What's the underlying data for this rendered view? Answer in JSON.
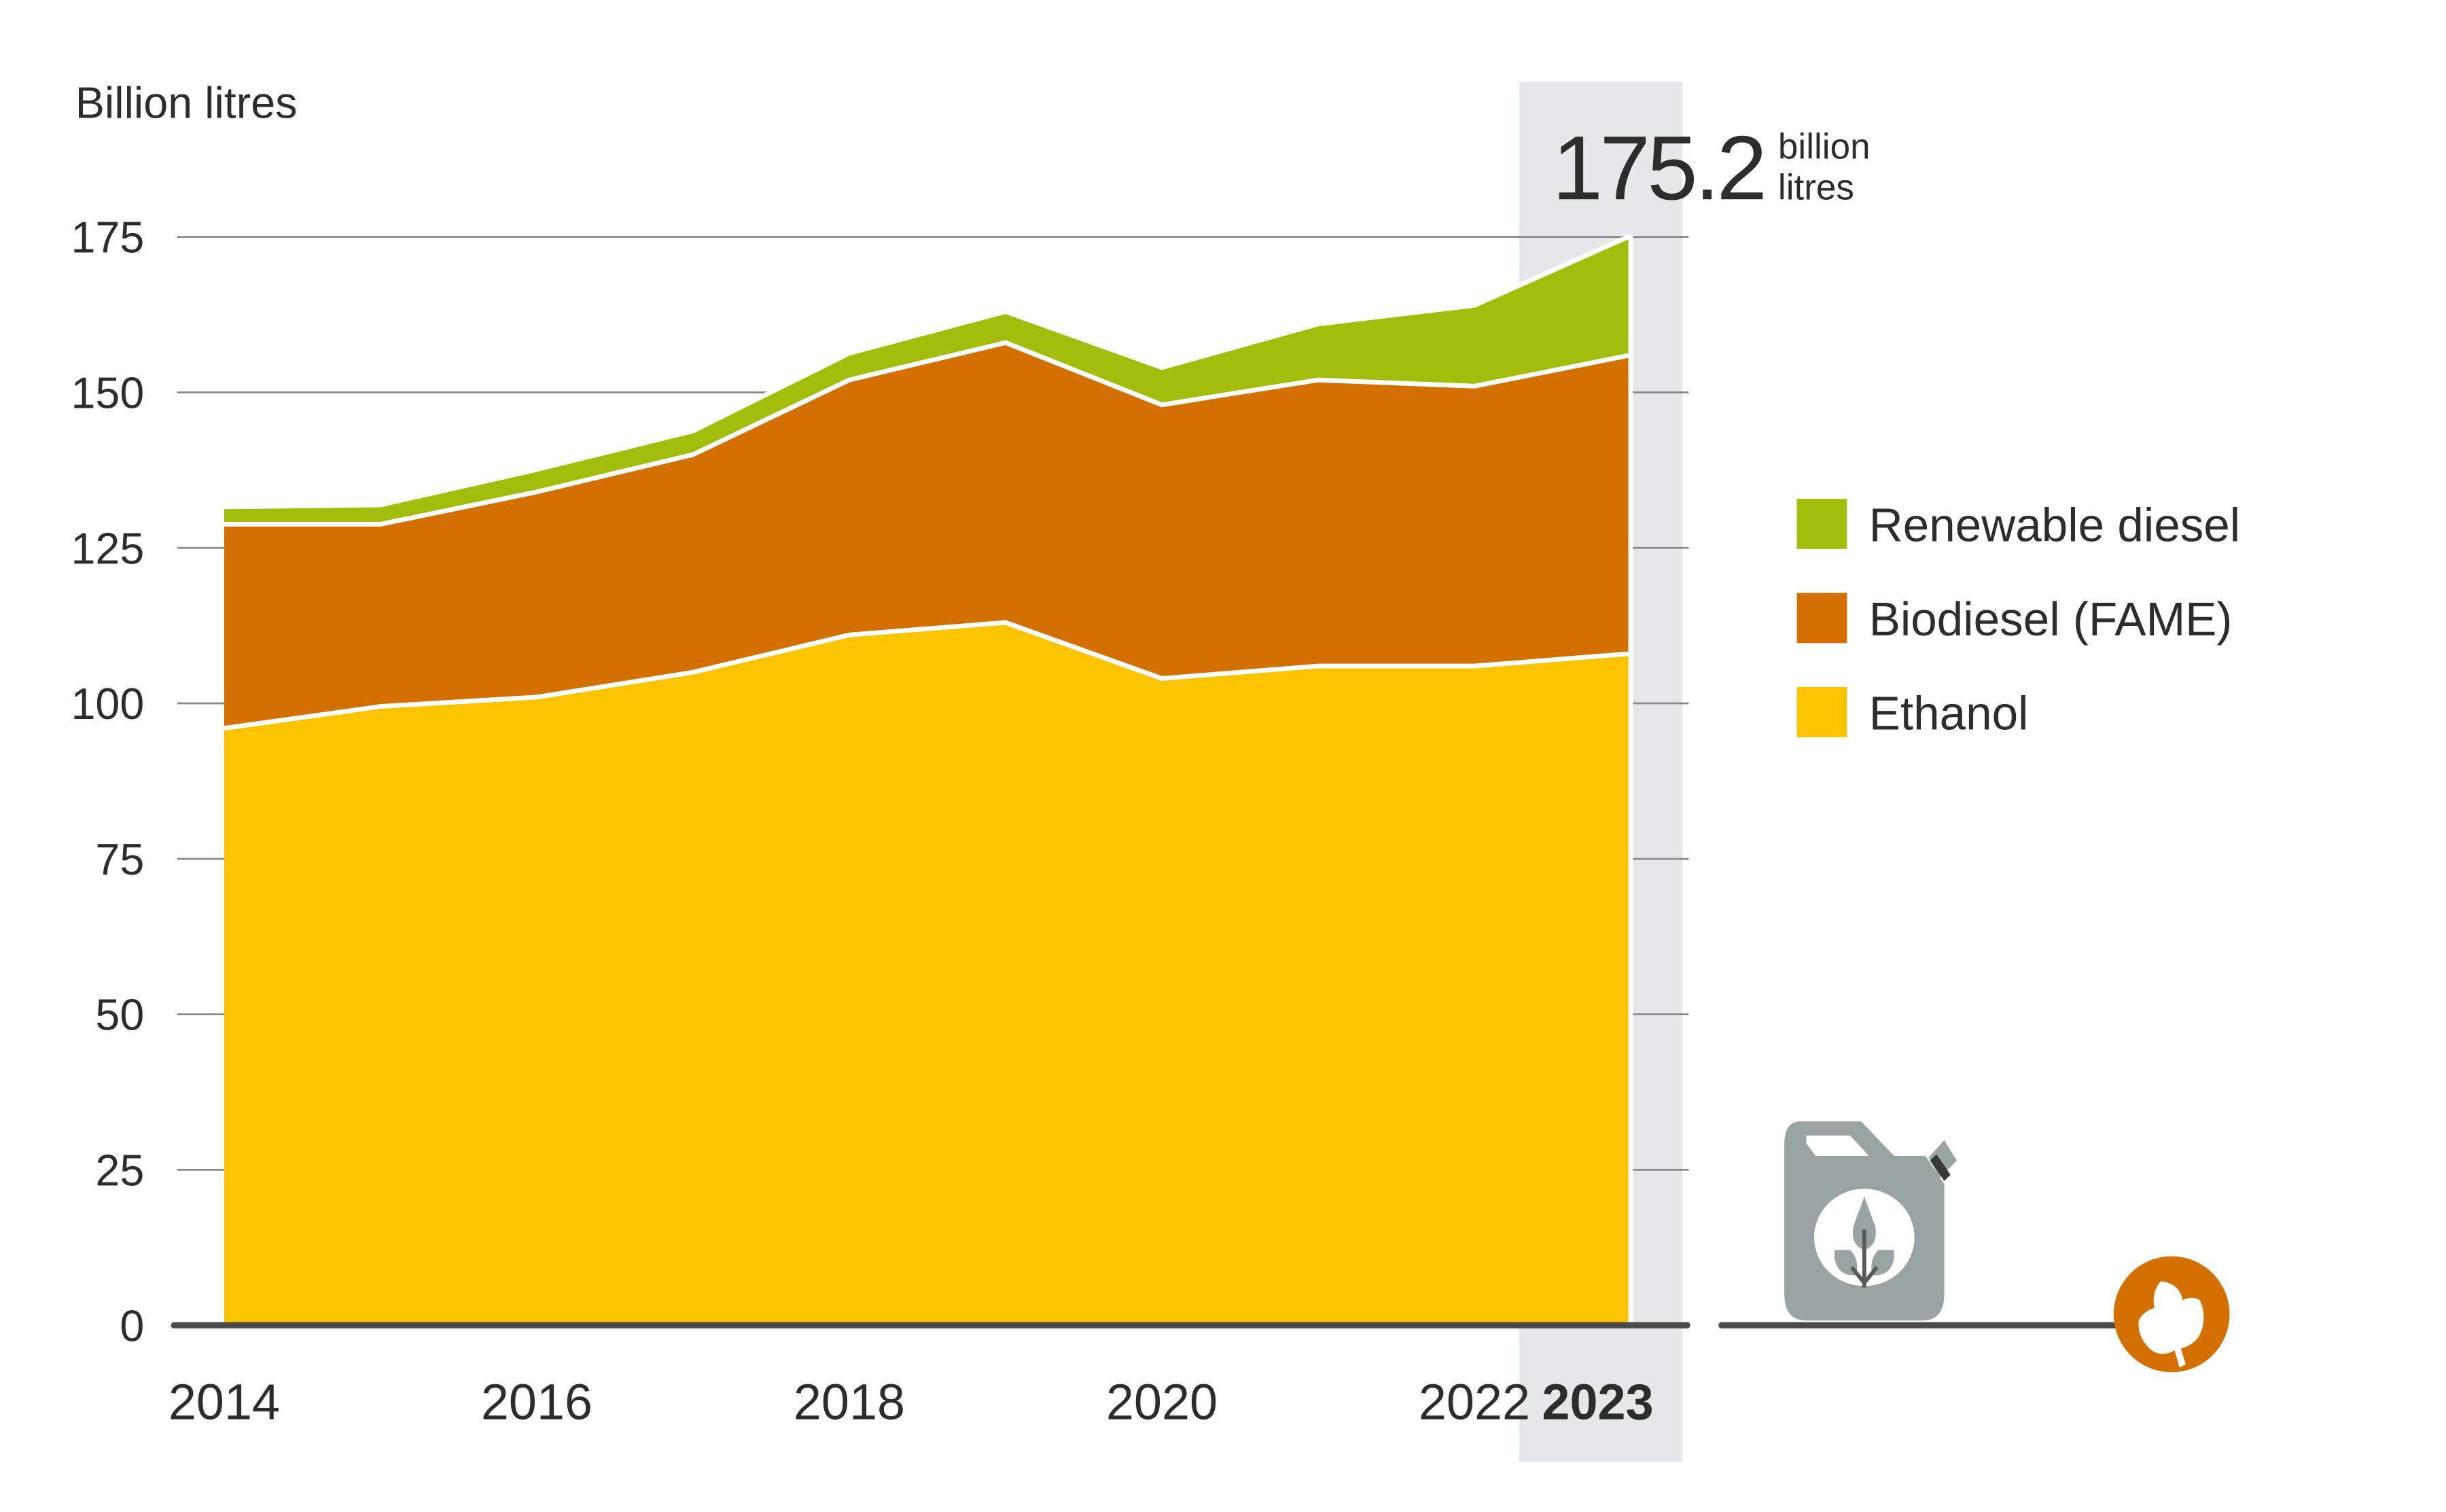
{
  "chart_data": {
    "type": "area",
    "stacked": true,
    "ylabel": "Billion litres",
    "ylim": [
      0,
      175
    ],
    "yticks": [
      0,
      25,
      50,
      75,
      100,
      125,
      150,
      175
    ],
    "x": [
      2014,
      2015,
      2016,
      2017,
      2018,
      2019,
      2020,
      2021,
      2022,
      2023
    ],
    "xtick_labels": [
      "2014",
      "2016",
      "2018",
      "2020",
      "2022",
      "2023"
    ],
    "highlight_year": "2023",
    "grid": true,
    "legend_position": "right",
    "series": [
      {
        "name": "Ethanol",
        "color": "#fbc300",
        "values": [
          96,
          99.5,
          101,
          105,
          111,
          113,
          104,
          106,
          106,
          108
        ]
      },
      {
        "name": "Biodiesel (FAME)",
        "color": "#d47000",
        "values": [
          32.8,
          29.3,
          33,
          35,
          41,
          45,
          44,
          46,
          45,
          48
        ]
      },
      {
        "name": "Renewable diesel",
        "color": "#a2bd0c",
        "values": [
          2.8,
          3.1,
          3.6,
          3.8,
          4.3,
          5,
          6,
          9,
          13,
          19.2
        ]
      }
    ],
    "annotation": {
      "value": "175.2",
      "unit_line1": "billion",
      "unit_line2": "litres"
    }
  },
  "colors": {
    "highlight_band": "#e5e8eb",
    "axis": "#4a4a4c",
    "grid": "#8a8a8c",
    "icon_gray": "#9aa3a3",
    "icon_orange": "#d47000"
  },
  "icons": [
    "biofuel-jerrycan-icon",
    "leaf-circle-icon"
  ]
}
